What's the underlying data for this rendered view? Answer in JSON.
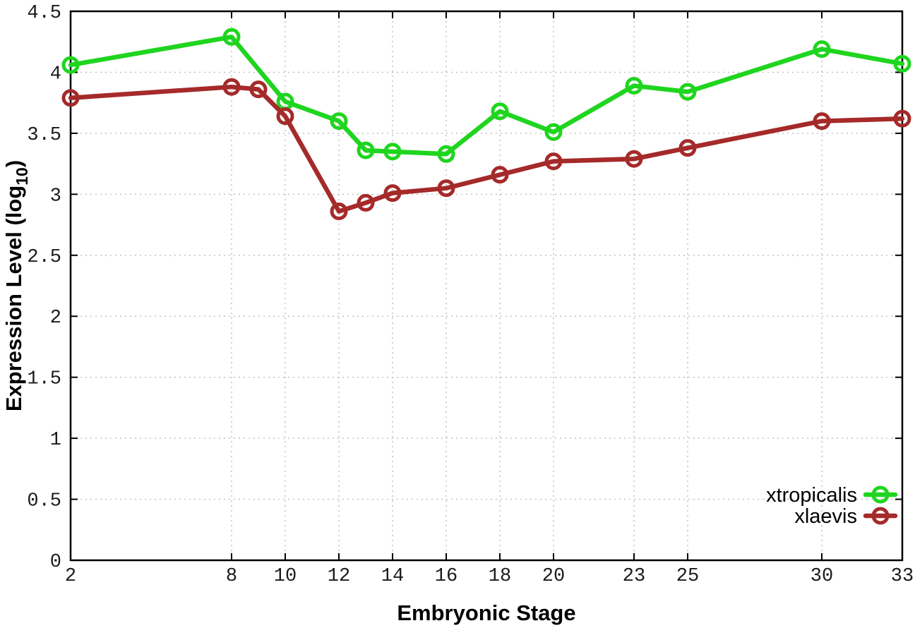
{
  "figure": {
    "background_color": "#ffffff",
    "border_color": "#000000",
    "grid_color": "#bdbdbd",
    "tick_label_color": "#1a1a1a"
  },
  "chart_data": {
    "type": "line",
    "title": "",
    "xlabel": "Embryonic Stage",
    "ylabel": {
      "prefix": "Expression Level (log",
      "sub": "10",
      "suffix": ")"
    },
    "x_axis": {
      "min": 2,
      "max": 33,
      "tick_labels": [
        2,
        8,
        10,
        12,
        14,
        16,
        18,
        20,
        23,
        25,
        30,
        33
      ]
    },
    "y_axis": {
      "min": 0,
      "max": 4.5,
      "tick_step": 0.5,
      "tick_labels": [
        "0",
        "0.5",
        "1",
        "1.5",
        "2",
        "2.5",
        "3",
        "3.5",
        "4",
        "4.5"
      ]
    },
    "grid": true,
    "legend": {
      "position": "inside-right-bottom",
      "marker": "open-circle"
    },
    "series": [
      {
        "name": "xtropicalis",
        "color": "#1fd51f",
        "points": [
          [
            2,
            4.06
          ],
          [
            8,
            4.29
          ],
          [
            10,
            3.76
          ],
          [
            12,
            3.6
          ],
          [
            13,
            3.36
          ],
          [
            14,
            3.35
          ],
          [
            16,
            3.33
          ],
          [
            18,
            3.68
          ],
          [
            20,
            3.51
          ],
          [
            23,
            3.89
          ],
          [
            25,
            3.84
          ],
          [
            30,
            4.19
          ],
          [
            33,
            4.07
          ]
        ]
      },
      {
        "name": "xlaevis",
        "color": "#a52a2a",
        "points": [
          [
            2,
            3.79
          ],
          [
            8,
            3.88
          ],
          [
            9,
            3.86
          ],
          [
            10,
            3.64
          ],
          [
            12,
            2.86
          ],
          [
            13,
            2.93
          ],
          [
            14,
            3.01
          ],
          [
            16,
            3.05
          ],
          [
            18,
            3.16
          ],
          [
            20,
            3.27
          ],
          [
            23,
            3.29
          ],
          [
            25,
            3.38
          ],
          [
            30,
            3.6
          ],
          [
            33,
            3.62
          ]
        ]
      }
    ]
  }
}
